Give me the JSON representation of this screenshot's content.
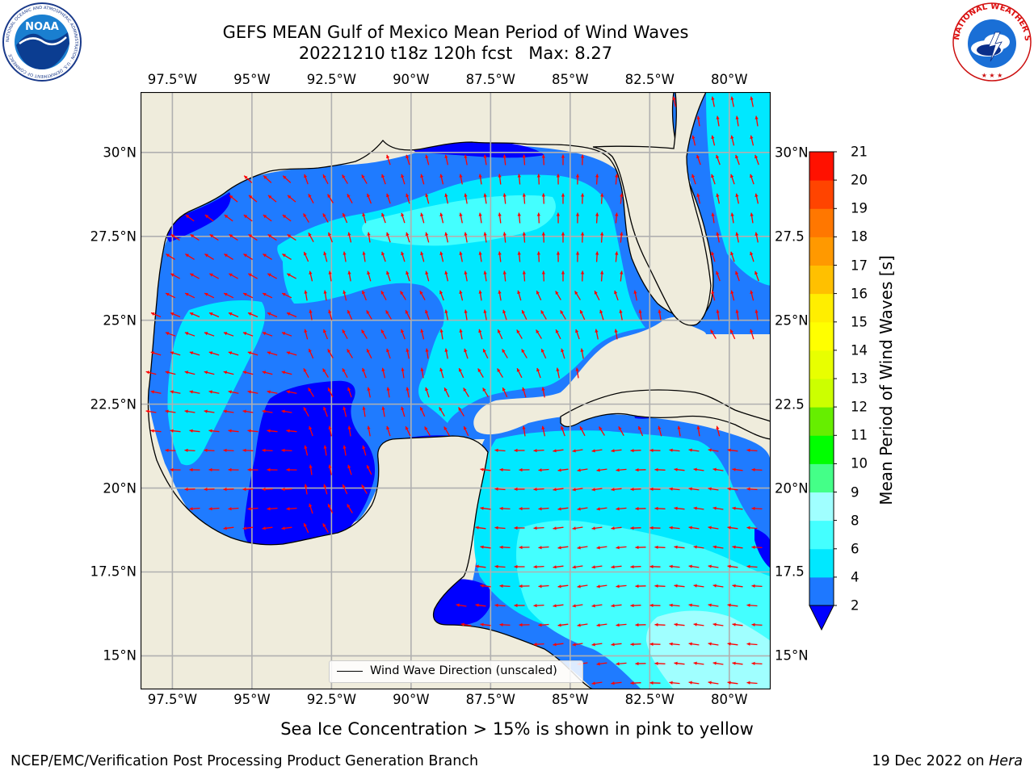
{
  "title": {
    "line1": "GEFS MEAN Gulf of Mexico Mean Period of Wind Waves",
    "line2": "20221210 t18z 120h fcst   Max: 8.27"
  },
  "logos": {
    "noaa": {
      "text": "NOAA",
      "ring_text": "NATIONAL OCEANIC AND ATMOSPHERIC ADMINISTRATION · U.S. DEPARTMENT OF COMMERCE"
    },
    "nws": {
      "ring_text": "NATIONAL WEATHER SERVICE"
    }
  },
  "map": {
    "lon_range": [
      -98.5,
      -78.7
    ],
    "lat_range": [
      14.0,
      31.8
    ],
    "lon_ticks": [
      {
        "value": -97.5,
        "label": "97.5°W"
      },
      {
        "value": -95.0,
        "label": "95°W"
      },
      {
        "value": -92.5,
        "label": "92.5°W"
      },
      {
        "value": -90.0,
        "label": "90°W"
      },
      {
        "value": -87.5,
        "label": "87.5°W"
      },
      {
        "value": -85.0,
        "label": "85°W"
      },
      {
        "value": -82.5,
        "label": "82.5°W"
      },
      {
        "value": -80.0,
        "label": "80°W"
      }
    ],
    "lat_ticks_left": [
      {
        "value": 30.0,
        "label": "30°N"
      },
      {
        "value": 27.5,
        "label": "27.5°N"
      },
      {
        "value": 25.0,
        "label": "25°N"
      },
      {
        "value": 22.5,
        "label": "22.5°N"
      },
      {
        "value": 20.0,
        "label": "20°N"
      },
      {
        "value": 17.5,
        "label": "17.5°N"
      },
      {
        "value": 15.0,
        "label": "15°N"
      }
    ],
    "lat_ticks_right": [
      {
        "value": 30.0,
        "label": "30°N"
      },
      {
        "value": 27.5,
        "label": "27.5"
      },
      {
        "value": 25.0,
        "label": "25°N"
      },
      {
        "value": 22.5,
        "label": "22.5"
      },
      {
        "value": 20.0,
        "label": "20°N"
      },
      {
        "value": 17.5,
        "label": "17.5"
      },
      {
        "value": 15.0,
        "label": "15°N"
      }
    ],
    "grid": true,
    "colors": {
      "land": "#efecdc",
      "ocean_default": "#1f7bff",
      "coastline": "#000000",
      "gridline": "#b0b0b0",
      "arrow": "#ff0000"
    },
    "vector_color_meaning": "wind wave direction (unscaled)"
  },
  "colorbar": {
    "label": "Mean Period of Wind Waves [s]",
    "extend": "min",
    "under_color": "#0000ff",
    "levels": [
      2,
      4,
      6,
      8,
      9,
      10,
      11,
      12,
      13,
      14,
      15,
      16,
      17,
      18,
      19,
      20,
      21
    ],
    "tick_labels": [
      "2",
      "4",
      "6",
      "8",
      "9",
      "10",
      "11",
      "12",
      "13",
      "14",
      "15",
      "16",
      "17",
      "18",
      "19",
      "20",
      "21"
    ],
    "colors": [
      "#1e78ff",
      "#00e8ff",
      "#44ffff",
      "#a0ffff",
      "#44ff88",
      "#00ff00",
      "#66ee00",
      "#ccff00",
      "#e8ff00",
      "#ffff00",
      "#ffee00",
      "#ffc000",
      "#ff9900",
      "#ff7700",
      "#ff4400",
      "#ff1100"
    ]
  },
  "legend": {
    "label": "Wind Wave Direction (unscaled)"
  },
  "notes": {
    "ice": "Sea Ice Concentration > 15% is shown in pink to yellow"
  },
  "footer": {
    "left": "NCEP/EMC/Verification Post Processing Product Generation Branch",
    "right_date": "19 Dec 2022 on ",
    "right_host": "Hera"
  }
}
